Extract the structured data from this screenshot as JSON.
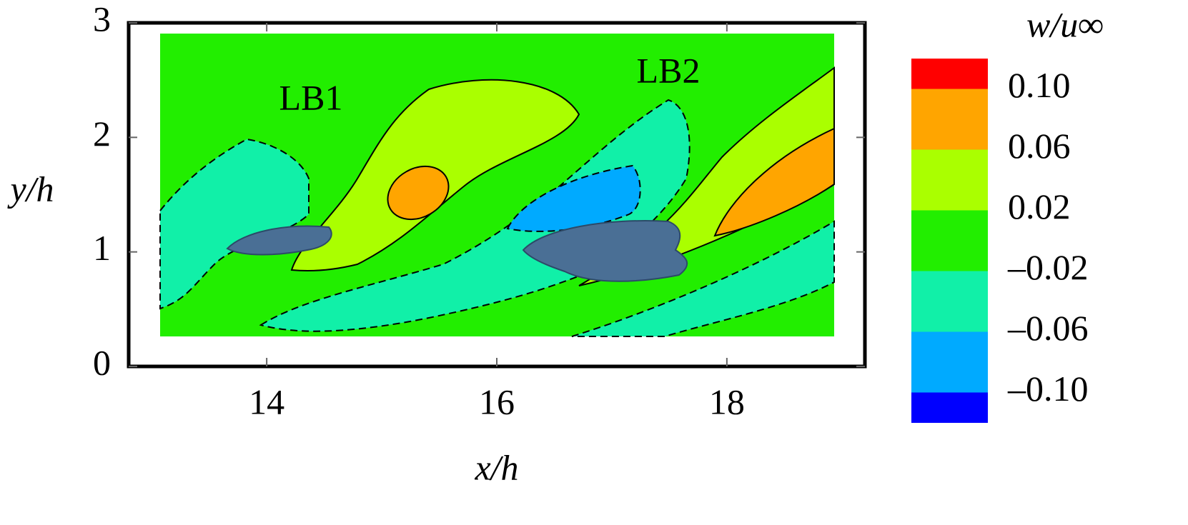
{
  "chart_data": {
    "type": "contour",
    "xlabel": "x/h",
    "ylabel": "y/h",
    "xlim": [
      12.8,
      19.2
    ],
    "xticks": [
      14,
      16,
      18
    ],
    "ylim": [
      0,
      3
    ],
    "yticks": [
      0,
      1,
      2,
      3
    ],
    "colorbar_title": "w/u∞",
    "clim": [
      -0.12,
      0.12
    ],
    "colorbar_ticks": [
      {
        "value": 0.1,
        "label": "0.10"
      },
      {
        "value": 0.06,
        "label": "0.06"
      },
      {
        "value": 0.02,
        "label": "0.02"
      },
      {
        "value": -0.02,
        "label": "–0.02"
      },
      {
        "value": -0.06,
        "label": "–0.06"
      },
      {
        "value": -0.1,
        "label": "–0.10"
      }
    ],
    "colors": [
      "#ff0000",
      "#ffa500",
      "#aaff00",
      "#22ee00",
      "#11f0a8",
      "#00aaff",
      "#0000ff"
    ],
    "annotations": [
      "LB1",
      "LB2"
    ]
  }
}
